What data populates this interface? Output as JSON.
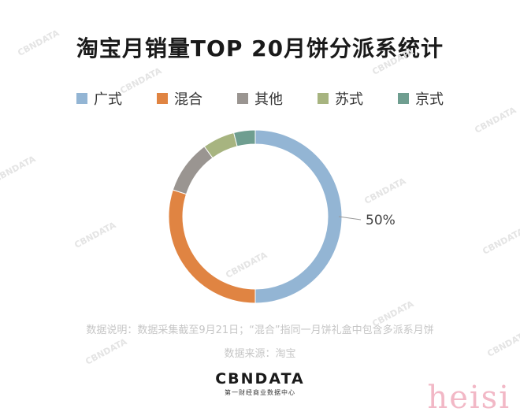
{
  "chart_data": {
    "type": "pie",
    "title": "淘宝月销量TOP 20月饼分派系统计",
    "categories": [
      "广式",
      "混合",
      "其他",
      "苏式",
      "京式"
    ],
    "values": [
      50,
      30,
      10,
      6,
      4
    ],
    "colors": [
      "#93b5d4",
      "#e08442",
      "#9a9591",
      "#a7b480",
      "#6f9e90"
    ],
    "data_labels": [
      "50%",
      "",
      "",
      "",
      ""
    ],
    "legend_position": "top",
    "donut": true
  },
  "notes": {
    "line1": "数据说明：数据采集截至9月21日；“混合”指同一月饼礼盒中包含多派系月饼",
    "line2": "数据来源：淘宝"
  },
  "logo": {
    "main": "CBNDATA",
    "sub": "第一财经商业数据中心"
  },
  "watermarks": [
    "CBNDATA"
  ],
  "corner_text": "heisi"
}
